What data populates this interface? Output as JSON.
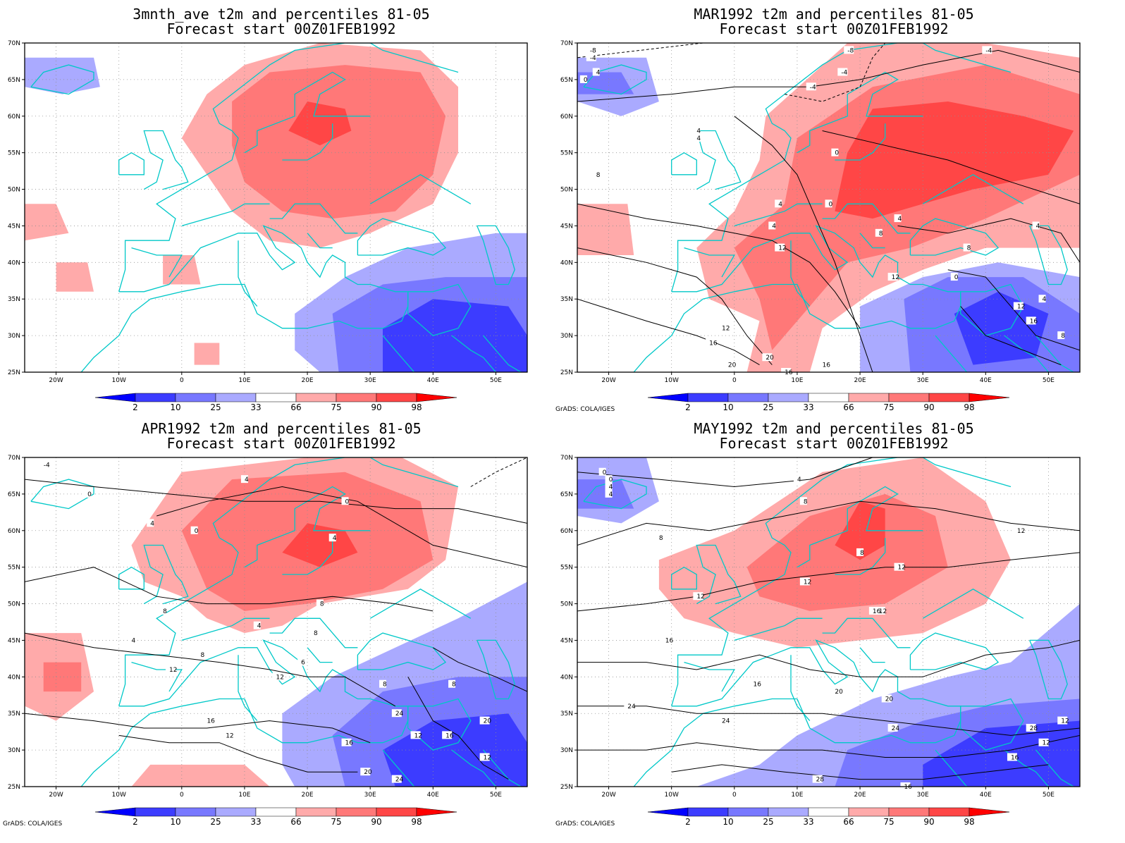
{
  "credit": "GrADS: COLA/IGES",
  "lat_ticks": [
    "70N",
    "65N",
    "60N",
    "55N",
    "50N",
    "45N",
    "40N",
    "35N",
    "30N",
    "25N"
  ],
  "lon_ticks": [
    "20W",
    "10W",
    "0",
    "10E",
    "20E",
    "30E",
    "40E",
    "50E"
  ],
  "colorbar": {
    "labels": [
      "2",
      "10",
      "25",
      "33",
      "66",
      "75",
      "90",
      "98"
    ],
    "colors": [
      "#0000ff",
      "#3c3cff",
      "#7878ff",
      "#aaaaff",
      "#ffffff",
      "#ffaaaa",
      "#ff7878",
      "#ff4646",
      "#ff0000"
    ]
  },
  "panels": [
    {
      "title1": "3mnth_ave t2m and percentiles 81-05",
      "title2": "Forecast start 00Z01FEB1992",
      "show_credit": false
    },
    {
      "title1": "MAR1992 t2m and percentiles 81-05",
      "title2": "Forecast start 00Z01FEB1992",
      "show_credit": true
    },
    {
      "title1": "APR1992 t2m and percentiles 81-05",
      "title2": "Forecast start 00Z01FEB1992",
      "show_credit": true
    },
    {
      "title1": "MAY1992 t2m and percentiles 81-05",
      "title2": "Forecast start 00Z01FEB1992",
      "show_credit": true
    }
  ],
  "contour_labels": [
    [],
    [
      "-8",
      "-4",
      "-8",
      "-4",
      "-4",
      "0",
      "4",
      "4",
      "0",
      "4",
      "8",
      "-4",
      "4",
      "0",
      "4",
      "12",
      "4",
      "8",
      "12",
      "0",
      "8",
      "4",
      "12",
      "16",
      "12",
      "16",
      "20",
      "20",
      "16",
      "16",
      "8",
      "4"
    ],
    [
      "-4",
      "4",
      "0",
      "4",
      "0",
      "0",
      "4",
      "8",
      "8",
      "8",
      "4",
      "4",
      "8",
      "12",
      "12",
      "6",
      "8",
      "16",
      "12",
      "16",
      "20",
      "24",
      "24",
      "12",
      "16",
      "20",
      "12",
      "8"
    ],
    [
      "0",
      "4",
      "0",
      "4",
      "4",
      "8",
      "8",
      "8",
      "12",
      "12",
      "12",
      "12",
      "12",
      "16",
      "16",
      "16",
      "20",
      "20",
      "24",
      "24",
      "24",
      "28",
      "28",
      "16",
      "12",
      "16",
      "12"
    ]
  ]
}
